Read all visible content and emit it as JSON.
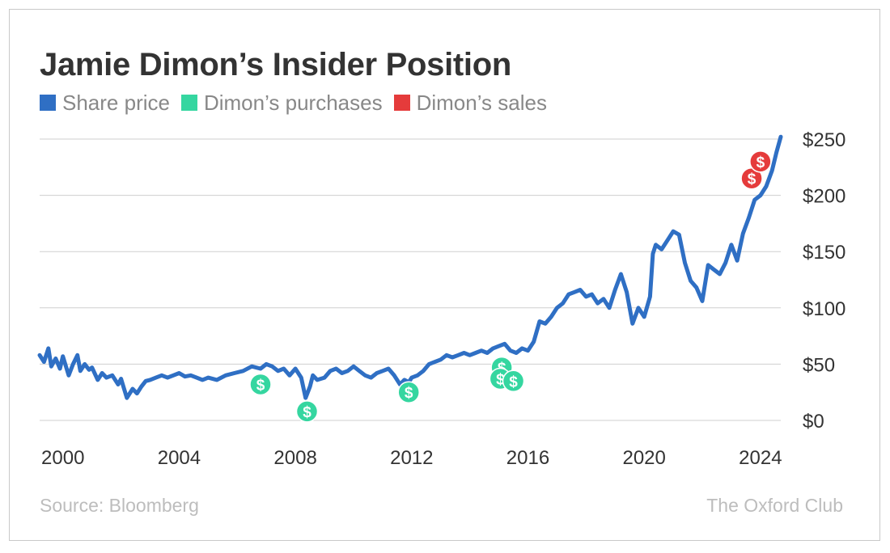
{
  "colors": {
    "share_price": "#2f6fc4",
    "purchases": "#35d6a0",
    "sales": "#e53b3b",
    "grid": "#cfcfcf",
    "text": "#333333",
    "muted": "#bdbdbd"
  },
  "footer": {
    "source": "Source: Bloomberg",
    "brand": "The Oxford Club"
  },
  "chart_data": {
    "type": "line",
    "title": "Jamie Dimon’s Insider Position",
    "xlabel": "",
    "ylabel": "",
    "xlim": [
      1999.2,
      2024.7
    ],
    "ylim": [
      0,
      250
    ],
    "grid": true,
    "legend_position": "top-left",
    "x_ticks": [
      2000,
      2004,
      2008,
      2012,
      2016,
      2020,
      2024
    ],
    "x_tick_labels": [
      "2000",
      "2004",
      "2008",
      "2012",
      "2016",
      "2020",
      "2024"
    ],
    "y_ticks": [
      0,
      50,
      100,
      150,
      200,
      250
    ],
    "y_tick_labels": [
      "$0",
      "$50",
      "$100",
      "$150",
      "$200",
      "$250"
    ],
    "legend": [
      {
        "name": "Share price",
        "color": "#2f6fc4"
      },
      {
        "name": "Dimon’s purchases",
        "color": "#35d6a0"
      },
      {
        "name": "Dimon’s sales",
        "color": "#e53b3b"
      }
    ],
    "series": [
      {
        "name": "Share price",
        "color": "#2f6fc4",
        "x": [
          1999.2,
          1999.35,
          1999.5,
          1999.6,
          1999.75,
          1999.9,
          2000.0,
          2000.2,
          2000.35,
          2000.5,
          2000.6,
          2000.75,
          2000.9,
          2001.0,
          2001.2,
          2001.35,
          2001.5,
          2001.7,
          2001.9,
          2002.0,
          2002.2,
          2002.4,
          2002.55,
          2002.7,
          2002.85,
          2003.0,
          2003.2,
          2003.4,
          2003.6,
          2003.8,
          2004.0,
          2004.2,
          2004.4,
          2004.6,
          2004.8,
          2005.0,
          2005.3,
          2005.6,
          2005.9,
          2006.2,
          2006.5,
          2006.8,
          2007.0,
          2007.2,
          2007.4,
          2007.6,
          2007.8,
          2008.0,
          2008.2,
          2008.35,
          2008.5,
          2008.6,
          2008.75,
          2009.0,
          2009.2,
          2009.4,
          2009.6,
          2009.8,
          2010.0,
          2010.2,
          2010.4,
          2010.6,
          2010.8,
          2011.0,
          2011.2,
          2011.4,
          2011.6,
          2011.75,
          2011.9,
          2012.0,
          2012.2,
          2012.4,
          2012.6,
          2012.8,
          2013.0,
          2013.2,
          2013.4,
          2013.6,
          2013.8,
          2014.0,
          2014.2,
          2014.4,
          2014.6,
          2014.8,
          2015.0,
          2015.2,
          2015.4,
          2015.6,
          2015.8,
          2016.0,
          2016.2,
          2016.4,
          2016.6,
          2016.8,
          2017.0,
          2017.2,
          2017.4,
          2017.6,
          2017.8,
          2018.0,
          2018.2,
          2018.4,
          2018.6,
          2018.8,
          2019.0,
          2019.2,
          2019.4,
          2019.6,
          2019.8,
          2020.0,
          2020.2,
          2020.3,
          2020.4,
          2020.6,
          2020.8,
          2021.0,
          2021.2,
          2021.4,
          2021.6,
          2021.8,
          2022.0,
          2022.2,
          2022.4,
          2022.6,
          2022.8,
          2023.0,
          2023.2,
          2023.4,
          2023.6,
          2023.8,
          2024.0,
          2024.2,
          2024.4,
          2024.55,
          2024.7
        ],
        "values": [
          58,
          52,
          64,
          48,
          55,
          46,
          57,
          40,
          50,
          58,
          44,
          50,
          45,
          47,
          36,
          42,
          38,
          40,
          32,
          37,
          20,
          28,
          24,
          30,
          35,
          36,
          38,
          40,
          38,
          40,
          42,
          39,
          40,
          38,
          36,
          38,
          36,
          40,
          42,
          44,
          48,
          46,
          50,
          48,
          44,
          46,
          40,
          46,
          38,
          20,
          30,
          40,
          36,
          38,
          44,
          46,
          42,
          44,
          48,
          44,
          40,
          38,
          42,
          44,
          46,
          40,
          32,
          36,
          34,
          38,
          40,
          44,
          50,
          52,
          54,
          58,
          56,
          58,
          60,
          58,
          60,
          62,
          60,
          64,
          66,
          68,
          62,
          60,
          64,
          62,
          70,
          88,
          86,
          92,
          100,
          104,
          112,
          114,
          116,
          110,
          112,
          104,
          108,
          100,
          116,
          130,
          114,
          86,
          100,
          92,
          110,
          148,
          156,
          152,
          160,
          168,
          165,
          140,
          124,
          118,
          106,
          138,
          134,
          130,
          140,
          156,
          142,
          166,
          180,
          196,
          200,
          208,
          222,
          238,
          252
        ]
      }
    ],
    "markers": [
      {
        "type": "purchase",
        "x": 2006.8,
        "y": 32,
        "label": "$"
      },
      {
        "type": "purchase",
        "x": 2008.4,
        "y": 8,
        "label": "$"
      },
      {
        "type": "purchase",
        "x": 2011.9,
        "y": 25,
        "label": "$"
      },
      {
        "type": "purchase",
        "x": 2015.1,
        "y": 47,
        "label": "$"
      },
      {
        "type": "purchase",
        "x": 2015.05,
        "y": 37,
        "label": "$"
      },
      {
        "type": "purchase",
        "x": 2015.5,
        "y": 35,
        "label": "$"
      },
      {
        "type": "sale",
        "x": 2023.7,
        "y": 215,
        "label": "$"
      },
      {
        "type": "sale",
        "x": 2024.0,
        "y": 230,
        "label": "$"
      }
    ]
  }
}
